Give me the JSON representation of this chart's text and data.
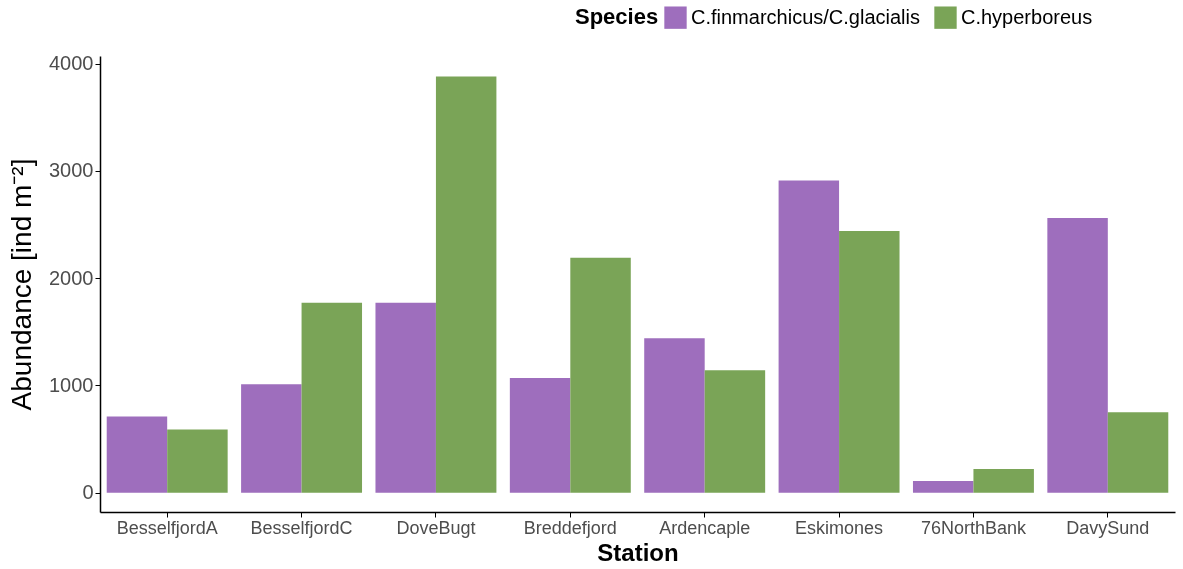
{
  "chart_data": {
    "type": "bar",
    "xlabel": "Station",
    "ylabel": "Abundance [ind m⁻²]",
    "legend_title": "Species",
    "legend": "top right",
    "grid": false,
    "categories": [
      "BesselfjordA",
      "BesselfjordC",
      "DoveBugt",
      "Breddefjord",
      "Ardencaple",
      "Eskimones",
      "76NorthBank",
      "DavySund"
    ],
    "series": [
      {
        "name": "C.finmarchicus/C.glacialis",
        "color": "#9e6ebd",
        "values": [
          710,
          1010,
          1770,
          1070,
          1440,
          2910,
          110,
          2560
        ]
      },
      {
        "name": "C.hyperboreus",
        "color": "#7aa457",
        "values": [
          590,
          1770,
          3880,
          2190,
          1140,
          2440,
          220,
          750
        ]
      }
    ],
    "ylim": [
      -180,
      4070
    ],
    "yticks": [
      0,
      1000,
      2000,
      3000,
      4000
    ]
  }
}
